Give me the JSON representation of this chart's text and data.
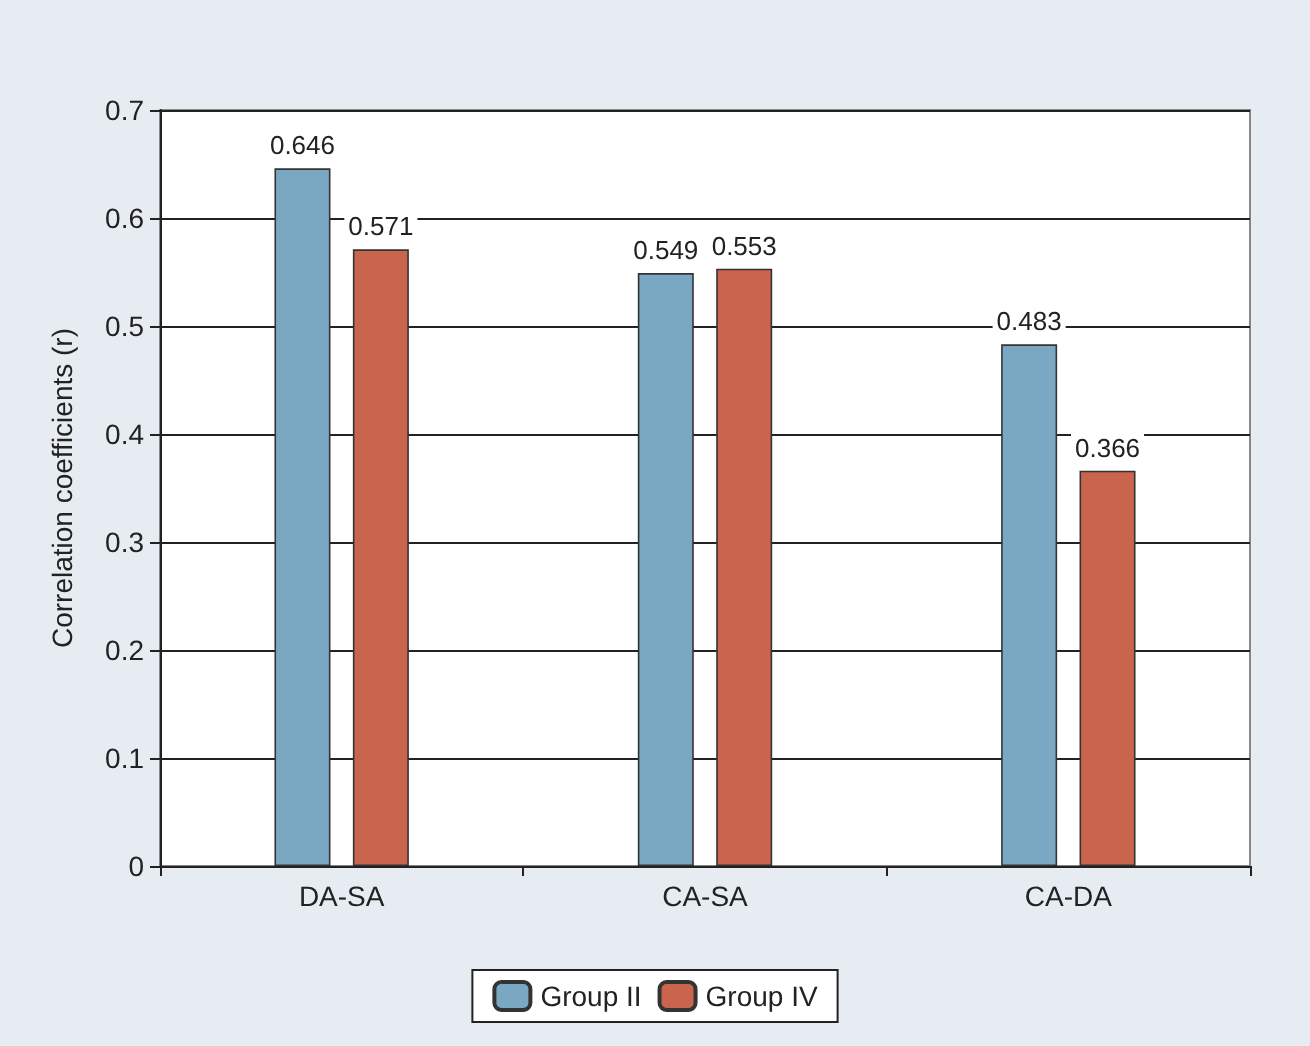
{
  "chart_data": {
    "type": "bar",
    "ylabel": "Correlation coefficients (r)",
    "categories": [
      "DA-SA",
      "CA-SA",
      "CA-DA"
    ],
    "series": [
      {
        "name": "Group II",
        "color": "#7aa8c2",
        "values": [
          0.646,
          0.549,
          0.483
        ]
      },
      {
        "name": "Group IV",
        "color": "#c9654d",
        "values": [
          0.571,
          0.553,
          0.366
        ]
      }
    ],
    "ylim": [
      0,
      0.7
    ],
    "yticks": [
      0,
      0.1,
      0.2,
      0.3,
      0.4,
      0.5,
      0.6,
      0.7
    ],
    "grid": "y",
    "legend": "bottom",
    "data_labels": true
  }
}
